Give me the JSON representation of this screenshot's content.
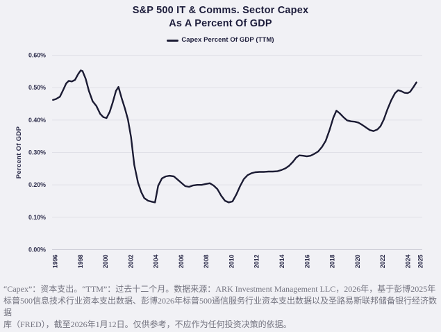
{
  "header": {
    "title_line1": "S&P 500 IT & Comms. Sector Capex",
    "title_line2": "As A Percent Of GDP"
  },
  "legend": {
    "label": "Capex Percent Of GDP (TTM)"
  },
  "chart_data": {
    "type": "line",
    "title": "S&P 500 IT & Comms. Sector Capex As A Percent Of GDP",
    "xlabel": "",
    "ylabel": "Percent Of GDP",
    "ylim": [
      0,
      0.6
    ],
    "xlim": [
      1995.8,
      2025.3
    ],
    "grid": "horizontal",
    "legend_position": "top-center",
    "line_color": "#1b1b33",
    "yticks": [
      0,
      0.1,
      0.2,
      0.3,
      0.4,
      0.5,
      0.6
    ],
    "ytick_labels": [
      "0.00%",
      "0.10%",
      "0.20%",
      "0.30%",
      "0.40%",
      "0.50%",
      "0.60%"
    ],
    "xticks": [
      1996,
      1998,
      2000,
      2002,
      2004,
      2006,
      2008,
      2010,
      2012,
      2014,
      2016,
      2018,
      2020,
      2022,
      2024,
      2025
    ],
    "series": [
      {
        "name": "Capex Percent Of GDP (TTM)",
        "unit": "% of GDP",
        "points": [
          [
            1995.85,
            0.462
          ],
          [
            1996.1,
            0.465
          ],
          [
            1996.4,
            0.472
          ],
          [
            1996.65,
            0.492
          ],
          [
            1996.9,
            0.513
          ],
          [
            1997.1,
            0.521
          ],
          [
            1997.35,
            0.519
          ],
          [
            1997.6,
            0.524
          ],
          [
            1997.85,
            0.542
          ],
          [
            1998.05,
            0.553
          ],
          [
            1998.2,
            0.551
          ],
          [
            1998.45,
            0.527
          ],
          [
            1998.7,
            0.49
          ],
          [
            1999.0,
            0.458
          ],
          [
            1999.3,
            0.443
          ],
          [
            1999.6,
            0.419
          ],
          [
            1999.85,
            0.409
          ],
          [
            2000.1,
            0.406
          ],
          [
            2000.35,
            0.425
          ],
          [
            2000.6,
            0.455
          ],
          [
            2000.85,
            0.49
          ],
          [
            2001.05,
            0.502
          ],
          [
            2001.3,
            0.468
          ],
          [
            2001.55,
            0.437
          ],
          [
            2001.8,
            0.402
          ],
          [
            2002.05,
            0.347
          ],
          [
            2002.3,
            0.262
          ],
          [
            2002.6,
            0.207
          ],
          [
            2002.85,
            0.178
          ],
          [
            2003.1,
            0.159
          ],
          [
            2003.4,
            0.151
          ],
          [
            2003.7,
            0.148
          ],
          [
            2003.95,
            0.146
          ],
          [
            2004.2,
            0.197
          ],
          [
            2004.5,
            0.22
          ],
          [
            2004.8,
            0.226
          ],
          [
            2005.1,
            0.228
          ],
          [
            2005.45,
            0.226
          ],
          [
            2005.75,
            0.216
          ],
          [
            2006.05,
            0.206
          ],
          [
            2006.35,
            0.196
          ],
          [
            2006.65,
            0.194
          ],
          [
            2006.95,
            0.198
          ],
          [
            2007.3,
            0.2
          ],
          [
            2007.65,
            0.2
          ],
          [
            2008.0,
            0.203
          ],
          [
            2008.3,
            0.205
          ],
          [
            2008.6,
            0.198
          ],
          [
            2008.9,
            0.187
          ],
          [
            2009.2,
            0.167
          ],
          [
            2009.5,
            0.151
          ],
          [
            2009.8,
            0.146
          ],
          [
            2010.1,
            0.149
          ],
          [
            2010.4,
            0.17
          ],
          [
            2010.7,
            0.196
          ],
          [
            2011.0,
            0.218
          ],
          [
            2011.3,
            0.23
          ],
          [
            2011.6,
            0.236
          ],
          [
            2011.9,
            0.239
          ],
          [
            2012.25,
            0.24
          ],
          [
            2012.6,
            0.24
          ],
          [
            2012.95,
            0.241
          ],
          [
            2013.3,
            0.241
          ],
          [
            2013.65,
            0.242
          ],
          [
            2014.0,
            0.246
          ],
          [
            2014.3,
            0.251
          ],
          [
            2014.6,
            0.259
          ],
          [
            2014.9,
            0.271
          ],
          [
            2015.15,
            0.284
          ],
          [
            2015.4,
            0.291
          ],
          [
            2015.7,
            0.29
          ],
          [
            2016.0,
            0.288
          ],
          [
            2016.3,
            0.29
          ],
          [
            2016.6,
            0.296
          ],
          [
            2016.9,
            0.303
          ],
          [
            2017.2,
            0.317
          ],
          [
            2017.5,
            0.336
          ],
          [
            2017.8,
            0.369
          ],
          [
            2018.1,
            0.407
          ],
          [
            2018.35,
            0.429
          ],
          [
            2018.6,
            0.421
          ],
          [
            2018.9,
            0.409
          ],
          [
            2019.2,
            0.399
          ],
          [
            2019.5,
            0.396
          ],
          [
            2019.8,
            0.395
          ],
          [
            2020.1,
            0.392
          ],
          [
            2020.4,
            0.385
          ],
          [
            2020.7,
            0.377
          ],
          [
            2021.0,
            0.369
          ],
          [
            2021.3,
            0.366
          ],
          [
            2021.6,
            0.371
          ],
          [
            2021.85,
            0.381
          ],
          [
            2022.1,
            0.401
          ],
          [
            2022.4,
            0.433
          ],
          [
            2022.7,
            0.461
          ],
          [
            2023.0,
            0.483
          ],
          [
            2023.25,
            0.492
          ],
          [
            2023.5,
            0.489
          ],
          [
            2023.75,
            0.484
          ],
          [
            2024.0,
            0.483
          ],
          [
            2024.2,
            0.487
          ],
          [
            2024.45,
            0.501
          ],
          [
            2024.7,
            0.516
          ]
        ]
      }
    ]
  },
  "footer": {
    "lines": [
      "“Capex”：资本支出。“TTM”：过去十二个月。数据来源：ARK Investment Management LLC，2026年，基于彭博2025年",
      "标普500信息技术行业资本支出数据、彭博2026年标普500通信服务行业资本支出数据以及圣路易斯联邦储备银行经济数据",
      "库（FRED），截至2026年1月12日。仅供参考，不应作为任何投资决策的依据。"
    ]
  },
  "colors": {
    "background": "#f1f1f5",
    "title_text": "#1d1d3b",
    "axis_text": "#2d2d4b",
    "gridline": "#e0e0e7",
    "line": "#1b1b33",
    "footer_text": "#73737f"
  }
}
